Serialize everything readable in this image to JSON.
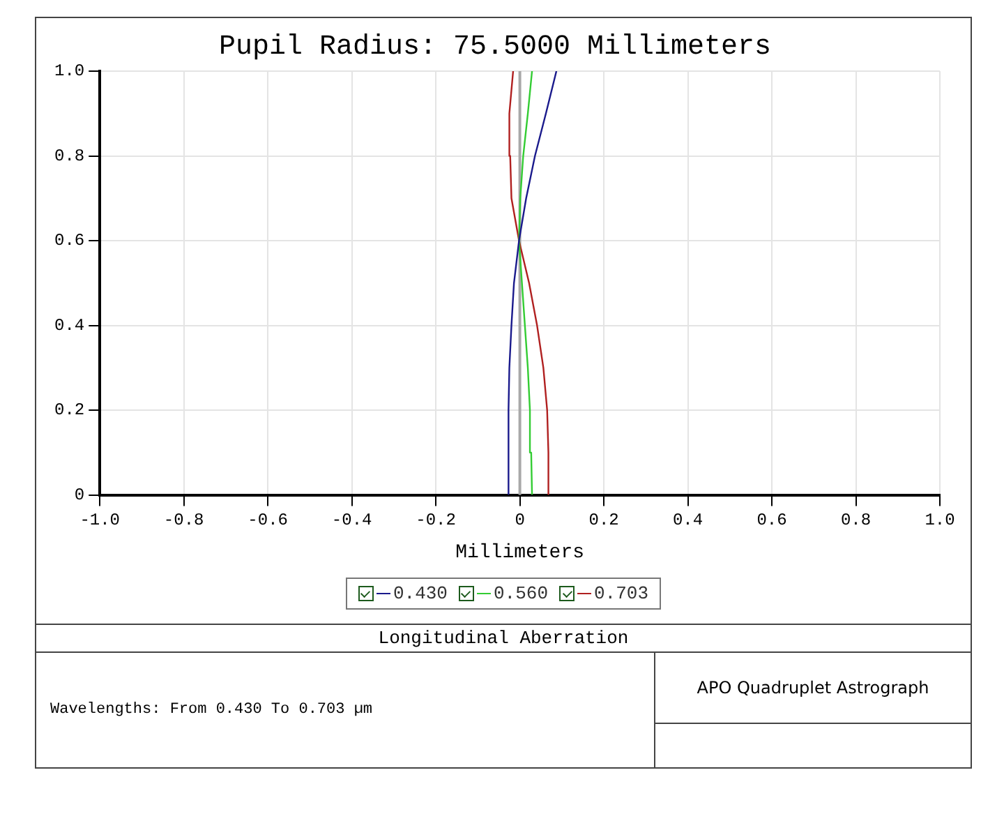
{
  "chart_data": {
    "type": "line",
    "title": "Pupil Radius: 75.5000 Millimeters",
    "xlabel": "Millimeters",
    "xlim": [
      -1,
      1
    ],
    "xticks": [
      {
        "value": -1,
        "label": "-1.0"
      },
      -0.8,
      -0.6,
      -0.4,
      -0.2,
      0,
      0.2,
      0.4,
      0.6,
      0.8,
      {
        "value": 1,
        "label": "1.0"
      }
    ],
    "ylim": [
      0,
      1
    ],
    "yticks": [
      0,
      0.2,
      0.4,
      0.6,
      0.8,
      {
        "value": 1,
        "label": "1.0"
      }
    ],
    "grid": true,
    "legend": "bottom",
    "marker": "none",
    "line_style": "solid",
    "ref_lines": [
      {
        "axis": "x",
        "value": 0,
        "color": "#a8a8a8"
      }
    ],
    "series": [
      {
        "name": "0.430",
        "color": "#1a1a8c",
        "x": [
          -0.027,
          -0.027,
          -0.025,
          -0.02,
          -0.014,
          -0.002,
          0.015,
          0.036,
          0.062,
          0.087
        ],
        "values": [
          0,
          0.2,
          0.3,
          0.4,
          0.5,
          0.6,
          0.7,
          0.8,
          0.9,
          1
        ]
      },
      {
        "name": "0.560",
        "color": "#33cc33",
        "x": [
          0.029,
          0.027,
          0.024,
          0.019,
          0.012,
          0.005,
          -0.002,
          0.001,
          0.008,
          0.019,
          0.029
        ],
        "values": [
          0,
          0.1,
          0.2,
          0.3,
          0.4,
          0.5,
          0.6,
          0.7,
          0.8,
          0.9,
          1
        ]
      },
      {
        "name": "0.703",
        "color": "#b02020",
        "x": [
          0.07,
          0.068,
          0.065,
          0.056,
          0.041,
          0.022,
          -0.002,
          -0.02,
          -0.023,
          -0.025,
          -0.016
        ],
        "values": [
          0,
          0.1,
          0.2,
          0.3,
          0.4,
          0.5,
          0.6,
          0.7,
          0.8,
          0.9,
          1
        ]
      }
    ],
    "annotations": [
      "Longitudinal Aberration",
      "Wavelengths: From 0.430 To 0.703 µm",
      "APO Quadruplet Astrograph"
    ]
  }
}
